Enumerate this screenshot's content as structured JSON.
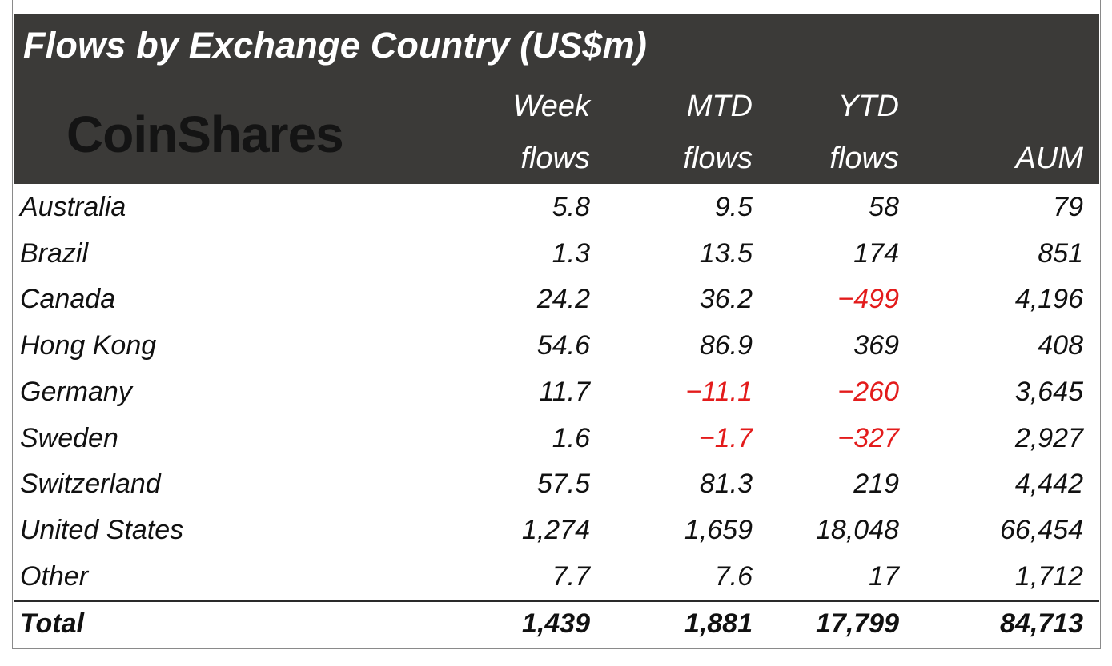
{
  "title": "Flows by Exchange Country (US$m)",
  "logo_text": "CoinShares",
  "colors": {
    "header_bg": "#3b3a38",
    "header_text": "#ffffff",
    "negative": "#e31b1b",
    "text": "#111111"
  },
  "columns": [
    {
      "line1": "Week",
      "line2": "flows"
    },
    {
      "line1": "MTD",
      "line2": "flows"
    },
    {
      "line1": "YTD",
      "line2": "flows"
    },
    {
      "line1": "",
      "line2": "AUM"
    }
  ],
  "chart_data": {
    "type": "table",
    "title": "Flows by Exchange Country (US$m)",
    "column_headers": [
      "Week flows",
      "MTD flows",
      "YTD flows",
      "AUM"
    ],
    "rows": [
      {
        "country": "Australia",
        "values": [
          "5.8",
          "9.5",
          "58",
          "79"
        ]
      },
      {
        "country": "Brazil",
        "values": [
          "1.3",
          "13.5",
          "174",
          "851"
        ]
      },
      {
        "country": "Canada",
        "values": [
          "24.2",
          "36.2",
          "-499",
          "4,196"
        ]
      },
      {
        "country": "Hong Kong",
        "values": [
          "54.6",
          "86.9",
          "369",
          "408"
        ]
      },
      {
        "country": "Germany",
        "values": [
          "11.7",
          "-11.1",
          "-260",
          "3,645"
        ]
      },
      {
        "country": "Sweden",
        "values": [
          "1.6",
          "-1.7",
          "-327",
          "2,927"
        ]
      },
      {
        "country": "Switzerland",
        "values": [
          "57.5",
          "81.3",
          "219",
          "4,442"
        ]
      },
      {
        "country": "United States",
        "values": [
          "1,274",
          "1,659",
          "18,048",
          "66,454"
        ]
      },
      {
        "country": "Other",
        "values": [
          "7.7",
          "7.6",
          "17",
          "1,712"
        ]
      }
    ],
    "total": {
      "country": "Total",
      "values": [
        "1,439",
        "1,881",
        "17,799",
        "84,713"
      ]
    }
  }
}
